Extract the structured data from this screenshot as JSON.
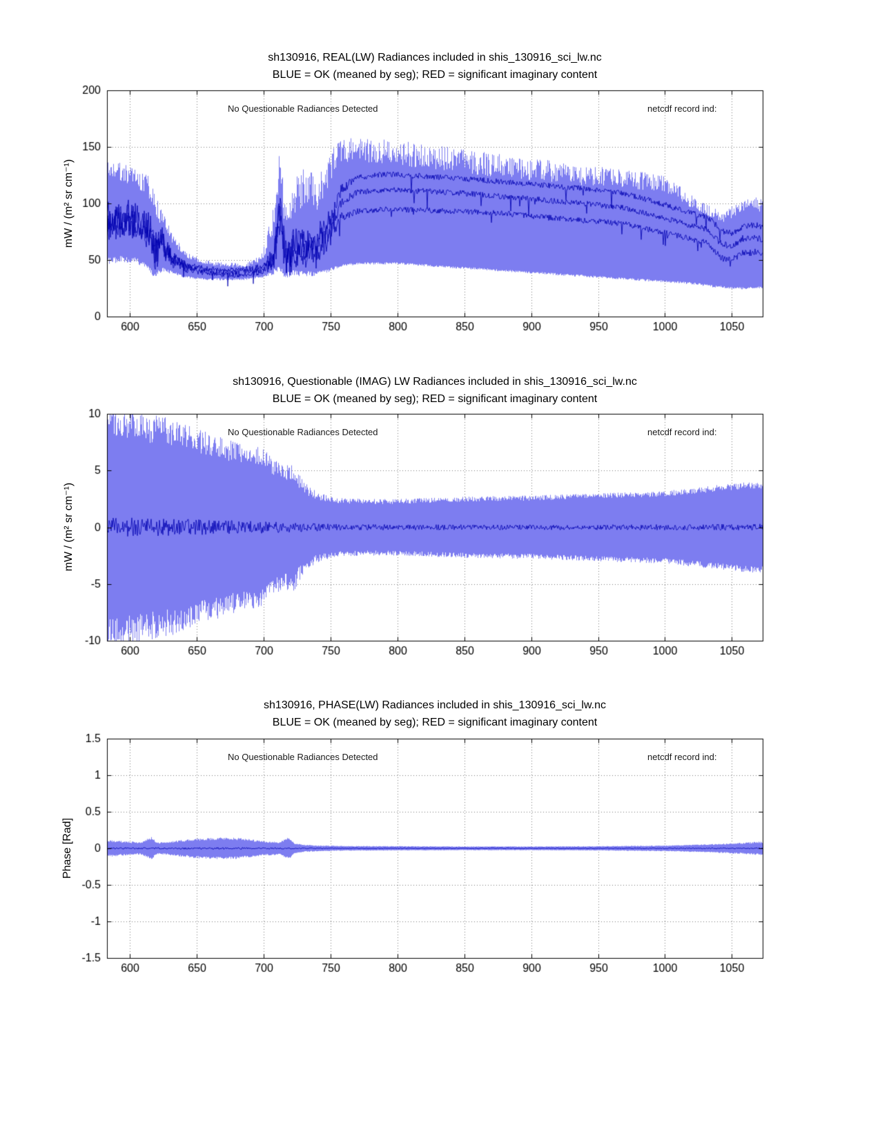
{
  "figure": {
    "bg": "#ffffff",
    "seed": 1309,
    "colors": {
      "envelope": "#7d7df0",
      "mean": "#0000b0",
      "grid": "#787878",
      "axis": "#000000",
      "text": "#000000",
      "annotation": "#1a1a1a"
    }
  },
  "chart_data": [
    {
      "type": "area",
      "title": "sh130916, REAL(LW) Radiances included in shis_130916_sci_lw.nc",
      "subtitle": "BLUE = OK (meaned by seg); RED = significant imaginary content",
      "ylabel": "mW / (m² sr cm⁻¹)",
      "annotation_left": "No Questionable Radiances Detected",
      "annotation_right": "netcdf record ind:",
      "xlim": [
        583,
        1073
      ],
      "ylim": [
        0,
        200
      ],
      "xticks": [
        600,
        650,
        700,
        750,
        800,
        850,
        900,
        950,
        1000,
        1050
      ],
      "yticks": [
        0,
        50,
        100,
        150,
        200
      ],
      "grid": true,
      "envelope": {
        "x": [
          583,
          593,
          605,
          614,
          618,
          624,
          632,
          642,
          655,
          670,
          685,
          698,
          706,
          711,
          716,
          722,
          730,
          740,
          748,
          754,
          762,
          775,
          800,
          825,
          850,
          875,
          900,
          925,
          950,
          975,
          1000,
          1013,
          1024,
          1034,
          1044,
          1052,
          1060,
          1068,
          1073
        ],
        "low": [
          46,
          48,
          47,
          40,
          34,
          40,
          37,
          34,
          32,
          32,
          32,
          34,
          36,
          40,
          34,
          36,
          35,
          36,
          39,
          42,
          45,
          46,
          46,
          44,
          42,
          40,
          38,
          36,
          34,
          32,
          30,
          29,
          28,
          26,
          25,
          24,
          24,
          25,
          25
        ],
        "high": [
          140,
          136,
          130,
          124,
          110,
          96,
          72,
          58,
          50,
          48,
          47,
          54,
          92,
          148,
          108,
          122,
          133,
          128,
          140,
          154,
          158,
          158,
          156,
          152,
          148,
          144,
          140,
          137,
          133,
          129,
          125,
          114,
          105,
          97,
          93,
          99,
          104,
          106,
          103
        ],
        "noise_high": [
          16,
          16,
          16,
          18,
          20,
          16,
          10,
          6,
          4,
          4,
          4,
          7,
          26,
          38,
          30,
          34,
          34,
          34,
          30,
          24,
          22,
          22,
          22,
          22,
          22,
          21,
          20,
          20,
          18,
          16,
          15,
          14,
          12,
          10,
          10,
          12,
          12,
          12,
          12
        ],
        "noise_low": [
          6,
          6,
          5,
          5,
          5,
          4,
          3,
          2,
          2,
          2,
          2,
          2,
          4,
          6,
          5,
          5,
          5,
          4,
          3,
          3,
          2,
          2,
          2,
          2,
          2,
          2,
          2,
          2,
          2,
          2,
          2,
          2,
          2,
          2,
          2,
          2,
          2,
          2,
          2
        ]
      },
      "means": [
        {
          "x": [
            583,
            600,
            615,
            618,
            624,
            632,
            645,
            660,
            680,
            700,
            707,
            712,
            717,
            724,
            732,
            742,
            750,
            758,
            770,
            790,
            820,
            850,
            880,
            910,
            940,
            970,
            1000,
            1018,
            1032,
            1042,
            1050,
            1058,
            1068,
            1073
          ],
          "y": [
            88,
            90,
            80,
            58,
            70,
            52,
            45,
            42,
            41,
            44,
            55,
            92,
            52,
            68,
            64,
            72,
            85,
            112,
            123,
            126,
            124,
            122,
            119,
            116,
            113,
            109,
            99,
            92,
            88,
            76,
            73,
            80,
            81,
            79
          ],
          "jitter": [
            14,
            14,
            13,
            16,
            12,
            6,
            3,
            2.5,
            2.5,
            3,
            8,
            18,
            14,
            14,
            12,
            12,
            10,
            5,
            2.5,
            2.5,
            2.5,
            2.5,
            2.5,
            2.5,
            2.5,
            2.5,
            2.5,
            2.5,
            2.5,
            3,
            3,
            3,
            3,
            3
          ],
          "dip_prob": 0.02,
          "dip_depth": 18
        },
        {
          "x": [
            583,
            600,
            615,
            618,
            624,
            632,
            645,
            660,
            680,
            700,
            707,
            712,
            717,
            724,
            732,
            742,
            750,
            758,
            770,
            790,
            820,
            850,
            880,
            910,
            940,
            970,
            1000,
            1018,
            1032,
            1042,
            1050,
            1058,
            1068,
            1073
          ],
          "y": [
            84,
            86,
            77,
            56,
            67,
            50,
            43,
            40,
            39,
            42,
            52,
            86,
            49,
            63,
            60,
            67,
            78,
            100,
            110,
            112,
            111,
            109,
            106,
            103,
            100,
            96,
            87,
            81,
            77,
            64,
            62,
            69,
            70,
            68
          ],
          "jitter": [
            14,
            14,
            13,
            16,
            12,
            6,
            3,
            2.5,
            2.5,
            3,
            8,
            18,
            14,
            14,
            12,
            12,
            10,
            5,
            2.5,
            2.5,
            2.5,
            2.5,
            2.5,
            2.5,
            2.5,
            2.5,
            2.5,
            2.5,
            2.5,
            3,
            3,
            3,
            3,
            3
          ],
          "dip_prob": 0.02,
          "dip_depth": 15
        },
        {
          "x": [
            583,
            600,
            615,
            618,
            624,
            632,
            645,
            660,
            680,
            700,
            707,
            712,
            717,
            724,
            732,
            742,
            750,
            758,
            770,
            790,
            820,
            850,
            880,
            910,
            940,
            970,
            1000,
            1018,
            1032,
            1042,
            1050,
            1058,
            1068,
            1073
          ],
          "y": [
            80,
            82,
            73,
            53,
            64,
            48,
            41,
            38,
            37,
            40,
            49,
            79,
            46,
            57,
            55,
            61,
            71,
            88,
            93,
            95,
            94,
            93,
            91,
            88,
            85,
            82,
            74,
            69,
            65,
            52,
            50,
            56,
            57,
            55
          ],
          "jitter": [
            14,
            14,
            13,
            16,
            12,
            6,
            3,
            2.5,
            2.5,
            3,
            8,
            18,
            14,
            14,
            12,
            12,
            10,
            5,
            2.5,
            2.5,
            2.5,
            2.5,
            2.5,
            2.5,
            2.5,
            2.5,
            2.5,
            2.5,
            2.5,
            3,
            3,
            3,
            3,
            3
          ],
          "dip_prob": 0.02,
          "dip_depth": 12
        }
      ]
    },
    {
      "type": "area",
      "title": "sh130916, Questionable (IMAG) LW Radiances included in shis_130916_sci_lw.nc",
      "subtitle": "BLUE = OK (meaned by seg); RED = significant imaginary content",
      "ylabel": "mW / (m² sr cm⁻¹)",
      "annotation_left": "No Questionable Radiances Detected",
      "annotation_right": "netcdf record ind:",
      "xlim": [
        583,
        1073
      ],
      "ylim": [
        -10,
        10
      ],
      "xticks": [
        600,
        650,
        700,
        750,
        800,
        850,
        900,
        950,
        1000,
        1050
      ],
      "yticks": [
        -10,
        -5,
        0,
        5,
        10
      ],
      "grid": true,
      "envelope": {
        "x": [
          583,
          600,
          615,
          630,
          645,
          660,
          675,
          690,
          700,
          708,
          715,
          722,
          728,
          736,
          745,
          755,
          775,
          800,
          850,
          900,
          950,
          1000,
          1030,
          1060,
          1073
        ],
        "high": [
          10.8,
          10.5,
          10.0,
          9.6,
          8.9,
          8.3,
          7.7,
          7.2,
          7.0,
          6.0,
          5.4,
          5.8,
          4.4,
          3.4,
          2.9,
          2.6,
          2.5,
          2.5,
          2.7,
          2.8,
          3.0,
          3.2,
          3.6,
          4.0,
          4.0
        ],
        "low": [
          -10.8,
          -10.5,
          -10.0,
          -9.6,
          -8.9,
          -8.3,
          -7.7,
          -7.2,
          -7.0,
          -6.0,
          -5.4,
          -5.8,
          -4.4,
          -3.4,
          -2.9,
          -2.6,
          -2.5,
          -2.5,
          -2.7,
          -2.8,
          -3.0,
          -3.2,
          -3.6,
          -4.0,
          -4.0
        ],
        "noise_high": [
          2.8,
          2.8,
          2.6,
          2.4,
          2.2,
          2.0,
          1.9,
          1.7,
          1.6,
          1.5,
          1.4,
          1.6,
          1.2,
          0.9,
          0.6,
          0.5,
          0.45,
          0.45,
          0.45,
          0.45,
          0.45,
          0.5,
          0.55,
          0.6,
          0.6
        ],
        "noise_low": [
          2.8,
          2.8,
          2.6,
          2.4,
          2.2,
          2.0,
          1.9,
          1.7,
          1.6,
          1.5,
          1.4,
          1.6,
          1.2,
          0.9,
          0.6,
          0.5,
          0.45,
          0.45,
          0.45,
          0.45,
          0.45,
          0.5,
          0.55,
          0.6,
          0.6
        ]
      },
      "means": [
        {
          "x": [
            583,
            620,
            660,
            700,
            730,
            750,
            800,
            900,
            1000,
            1073
          ],
          "y": [
            0,
            0,
            0,
            0,
            0,
            0,
            0,
            0,
            0,
            0
          ],
          "jitter": [
            0.9,
            0.8,
            0.65,
            0.55,
            0.4,
            0.3,
            0.25,
            0.22,
            0.25,
            0.3
          ]
        }
      ]
    },
    {
      "type": "area",
      "title": "sh130916, PHASE(LW) Radiances included in shis_130916_sci_lw.nc",
      "subtitle": "BLUE = OK (meaned by seg); RED = significant imaginary content",
      "ylabel": "Phase [Rad]",
      "annotation_left": "No Questionable Radiances Detected",
      "annotation_right": "netcdf record ind:",
      "xlim": [
        583,
        1073
      ],
      "ylim": [
        -1.5,
        1.5
      ],
      "xticks": [
        600,
        650,
        700,
        750,
        800,
        850,
        900,
        950,
        1000,
        1050
      ],
      "yticks": [
        -1.5,
        -1,
        -0.5,
        0,
        0.5,
        1,
        1.5
      ],
      "grid": true,
      "envelope": {
        "x": [
          583,
          595,
          608,
          616,
          620,
          628,
          640,
          652,
          665,
          680,
          692,
          702,
          712,
          719,
          723,
          730,
          742,
          760,
          800,
          850,
          900,
          950,
          1000,
          1030,
          1055,
          1073
        ],
        "high": [
          0.12,
          0.1,
          0.085,
          0.16,
          0.08,
          0.09,
          0.12,
          0.14,
          0.15,
          0.145,
          0.12,
          0.1,
          0.09,
          0.16,
          0.07,
          0.05,
          0.04,
          0.032,
          0.03,
          0.026,
          0.026,
          0.03,
          0.04,
          0.055,
          0.075,
          0.095
        ],
        "low": [
          -0.12,
          -0.1,
          -0.085,
          -0.16,
          -0.08,
          -0.09,
          -0.12,
          -0.14,
          -0.15,
          -0.145,
          -0.12,
          -0.1,
          -0.09,
          -0.16,
          -0.07,
          -0.05,
          -0.04,
          -0.032,
          -0.03,
          -0.026,
          -0.026,
          -0.03,
          -0.04,
          -0.055,
          -0.075,
          -0.095
        ],
        "noise_high": [
          0.03,
          0.025,
          0.02,
          0.04,
          0.02,
          0.02,
          0.03,
          0.035,
          0.035,
          0.035,
          0.03,
          0.025,
          0.02,
          0.04,
          0.015,
          0.012,
          0.01,
          0.008,
          0.007,
          0.006,
          0.006,
          0.007,
          0.01,
          0.012,
          0.018,
          0.022
        ],
        "noise_low": [
          0.03,
          0.025,
          0.02,
          0.04,
          0.02,
          0.02,
          0.03,
          0.035,
          0.035,
          0.035,
          0.03,
          0.025,
          0.02,
          0.04,
          0.015,
          0.012,
          0.01,
          0.008,
          0.007,
          0.006,
          0.006,
          0.007,
          0.01,
          0.012,
          0.018,
          0.022
        ]
      },
      "means": [
        {
          "x": [
            583,
            700,
            750,
            1073
          ],
          "y": [
            0,
            0,
            0,
            0
          ],
          "jitter": [
            0.012,
            0.012,
            0.006,
            0.008
          ]
        }
      ]
    }
  ]
}
